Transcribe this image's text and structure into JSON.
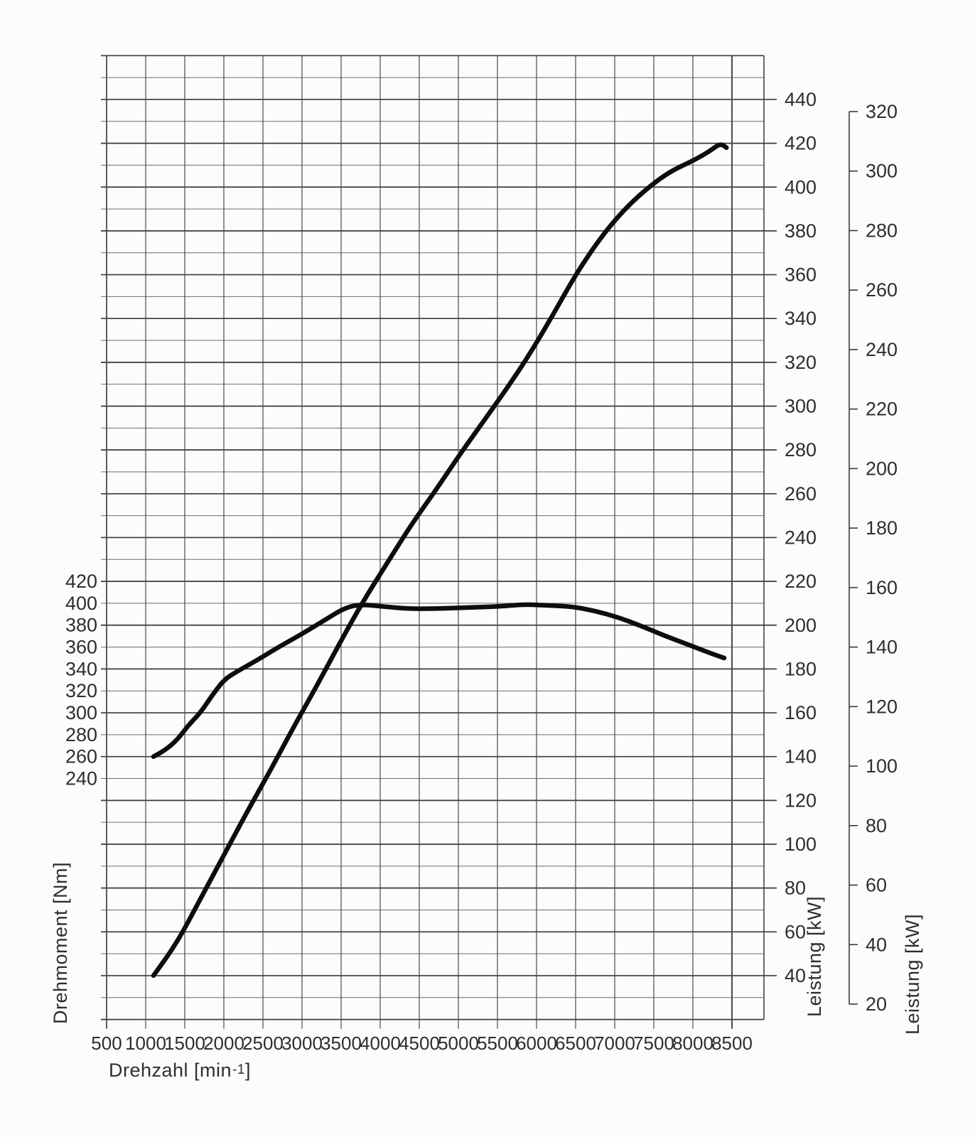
{
  "chart_data": {
    "type": "line",
    "title": "",
    "background": "#fcfcfc",
    "colors": {
      "curve": "#0d0d0d",
      "grid_major": "#3a3a3a",
      "grid_minor": "#6b6b6b",
      "axis_line": "#3a3a3a",
      "text": "#2e2e2e"
    },
    "grid": {
      "on": true,
      "vertical_step_rpm": 500,
      "horizontal_fine_step": 10
    },
    "legend": {
      "position": "none"
    },
    "x_axis": {
      "label_pre": "Drehzahl [min",
      "label_sup": "-1",
      "label_post": "]",
      "range": [
        500,
        8500
      ],
      "ticks": [
        500,
        1000,
        1500,
        2000,
        2500,
        3000,
        3500,
        4000,
        4500,
        5000,
        5500,
        6000,
        6500,
        7000,
        7500,
        8000,
        8500
      ]
    },
    "torque_axis": {
      "label": "Drehmoment [Nm]",
      "side": "left",
      "range": [
        240,
        420
      ],
      "ticks_desc": [
        420,
        400,
        380,
        360,
        340,
        320,
        300,
        280,
        260,
        240
      ]
    },
    "power_axis_inner": {
      "label": "Leistung [kW]",
      "side": "right",
      "range": [
        40,
        440
      ],
      "ticks_desc": [
        440,
        420,
        400,
        380,
        360,
        340,
        320,
        300,
        280,
        260,
        240,
        220,
        200,
        180,
        160,
        140,
        120,
        100,
        80,
        60,
        40
      ]
    },
    "power_axis_outer": {
      "label": "Leistung [kW]",
      "side": "right-outer",
      "range": [
        20,
        320
      ],
      "ticks_desc": [
        320,
        300,
        280,
        260,
        240,
        220,
        200,
        180,
        160,
        140,
        120,
        100,
        80,
        60,
        40,
        20
      ]
    },
    "series": [
      {
        "name": "Drehmoment",
        "axis": "torque",
        "points": [
          [
            1100,
            260
          ],
          [
            1250,
            266
          ],
          [
            1400,
            275
          ],
          [
            1550,
            289
          ],
          [
            1700,
            300
          ],
          [
            1850,
            316
          ],
          [
            2000,
            330
          ],
          [
            2150,
            337
          ],
          [
            2400,
            347
          ],
          [
            2700,
            360
          ],
          [
            3000,
            372
          ],
          [
            3300,
            385
          ],
          [
            3550,
            396
          ],
          [
            3750,
            399
          ],
          [
            4050,
            397
          ],
          [
            4350,
            395
          ],
          [
            4700,
            395
          ],
          [
            5100,
            396
          ],
          [
            5500,
            397
          ],
          [
            5850,
            399
          ],
          [
            6150,
            398
          ],
          [
            6450,
            397
          ],
          [
            6750,
            393
          ],
          [
            7050,
            387
          ],
          [
            7350,
            379
          ],
          [
            7650,
            370
          ],
          [
            7950,
            362
          ],
          [
            8200,
            355
          ],
          [
            8400,
            350
          ]
        ]
      },
      {
        "name": "Leistung",
        "axis": "power_inner",
        "points": [
          [
            1100,
            40
          ],
          [
            1400,
            55
          ],
          [
            1700,
            75
          ],
          [
            2000,
            95
          ],
          [
            2300,
            115
          ],
          [
            2600,
            134
          ],
          [
            2900,
            154
          ],
          [
            3200,
            173
          ],
          [
            3500,
            193
          ],
          [
            3800,
            212
          ],
          [
            4100,
            229
          ],
          [
            4400,
            246
          ],
          [
            4700,
            261
          ],
          [
            5000,
            277
          ],
          [
            5300,
            292
          ],
          [
            5600,
            307
          ],
          [
            5900,
            323
          ],
          [
            6200,
            341
          ],
          [
            6500,
            360
          ],
          [
            6800,
            376
          ],
          [
            7100,
            389
          ],
          [
            7400,
            399
          ],
          [
            7700,
            407
          ],
          [
            8000,
            412
          ],
          [
            8200,
            416
          ],
          [
            8350,
            420
          ],
          [
            8430,
            418
          ]
        ]
      }
    ]
  }
}
